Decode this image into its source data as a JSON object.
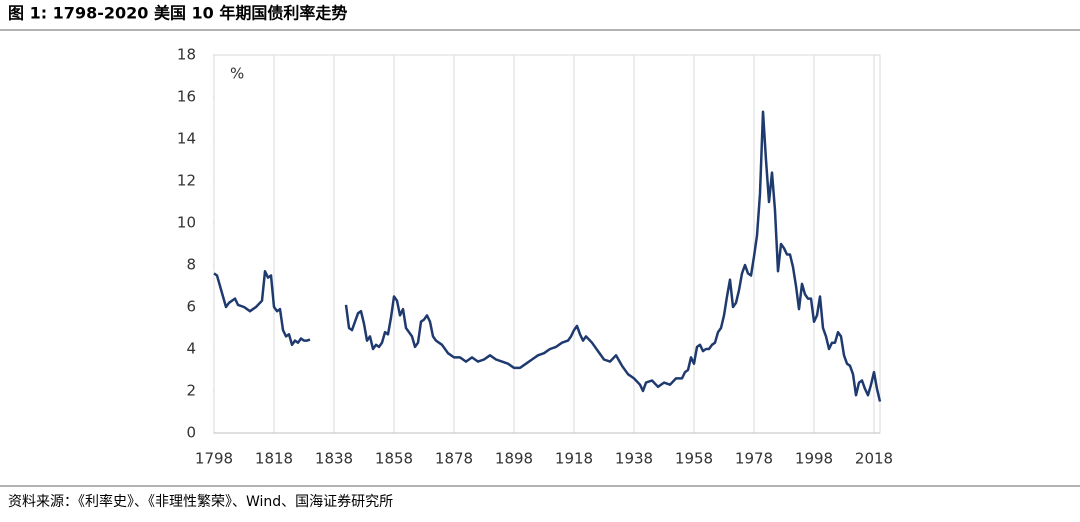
{
  "chart_data": {
    "type": "line",
    "title": "图 1:  1798-2020  美国 10 年期国债利率走势",
    "unit_label": "%",
    "source": "资料来源：《利率史》、《非理性繁荣》、Wind、国海证券研究所",
    "x": [
      1798,
      1799,
      1800,
      1801,
      1802,
      1803,
      1805,
      1806,
      1808,
      1810,
      1812,
      1814,
      1815,
      1816,
      1817,
      1818,
      1819,
      1820,
      1821,
      1822,
      1823,
      1824,
      1825,
      1826,
      1827,
      1828,
      1829,
      1830,
      1836,
      1842,
      1843,
      1844,
      1845,
      1846,
      1847,
      1848,
      1849,
      1850,
      1851,
      1852,
      1853,
      1854,
      1855,
      1856,
      1857,
      1858,
      1859,
      1860,
      1861,
      1862,
      1863,
      1864,
      1865,
      1866,
      1867,
      1868,
      1869,
      1870,
      1871,
      1872,
      1874,
      1876,
      1878,
      1880,
      1882,
      1884,
      1886,
      1888,
      1890,
      1892,
      1894,
      1896,
      1898,
      1900,
      1902,
      1904,
      1906,
      1908,
      1910,
      1912,
      1914,
      1916,
      1917,
      1918,
      1919,
      1920,
      1921,
      1922,
      1924,
      1926,
      1928,
      1930,
      1932,
      1934,
      1936,
      1938,
      1940,
      1941,
      1942,
      1944,
      1946,
      1948,
      1950,
      1952,
      1954,
      1955,
      1956,
      1957,
      1958,
      1959,
      1960,
      1961,
      1962,
      1963,
      1964,
      1965,
      1966,
      1967,
      1968,
      1969,
      1970,
      1971,
      1972,
      1973,
      1974,
      1975,
      1976,
      1977,
      1978,
      1979,
      1980,
      1981,
      1982,
      1983,
      1984,
      1985,
      1986,
      1987,
      1988,
      1989,
      1990,
      1991,
      1992,
      1993,
      1994,
      1995,
      1996,
      1997,
      1998,
      1999,
      2000,
      2001,
      2002,
      2003,
      2004,
      2005,
      2006,
      2007,
      2008,
      2009,
      2010,
      2011,
      2012,
      2013,
      2014,
      2015,
      2016,
      2017,
      2018,
      2019,
      2020
    ],
    "series": [
      {
        "name": "美国10年期国债利率",
        "color": "#1f3a6e",
        "values": [
          7.6,
          7.5,
          7.0,
          6.5,
          6.0,
          6.2,
          6.4,
          6.1,
          6.0,
          5.8,
          6.0,
          6.3,
          7.7,
          7.4,
          7.5,
          6.0,
          5.8,
          5.9,
          4.9,
          4.6,
          4.7,
          4.2,
          4.4,
          4.3,
          4.5,
          4.4,
          4.4,
          4.45,
          null,
          6.1,
          5.0,
          4.9,
          5.3,
          5.7,
          5.8,
          5.2,
          4.4,
          4.6,
          4.0,
          4.2,
          4.1,
          4.3,
          4.8,
          4.7,
          5.5,
          6.5,
          6.3,
          5.6,
          5.9,
          5.0,
          4.8,
          4.6,
          4.1,
          4.3,
          5.3,
          5.4,
          5.6,
          5.3,
          4.6,
          4.4,
          4.2,
          3.8,
          3.6,
          3.6,
          3.4,
          3.6,
          3.4,
          3.5,
          3.7,
          3.5,
          3.4,
          3.3,
          3.1,
          3.1,
          3.3,
          3.5,
          3.7,
          3.8,
          4.0,
          4.1,
          4.3,
          4.4,
          4.6,
          4.9,
          5.1,
          4.7,
          4.4,
          4.6,
          4.3,
          3.9,
          3.5,
          3.4,
          3.7,
          3.2,
          2.8,
          2.6,
          2.3,
          2.0,
          2.4,
          2.5,
          2.2,
          2.4,
          2.3,
          2.6,
          2.6,
          2.9,
          3.0,
          3.6,
          3.3,
          4.1,
          4.2,
          3.9,
          4.0,
          4.0,
          4.2,
          4.3,
          4.8,
          5.0,
          5.6,
          6.5,
          7.3,
          6.0,
          6.2,
          6.8,
          7.6,
          8.0,
          7.6,
          7.5,
          8.4,
          9.4,
          11.4,
          15.3,
          13.0,
          11.0,
          12.4,
          10.6,
          7.7,
          9.0,
          8.8,
          8.5,
          8.5,
          7.9,
          7.0,
          5.9,
          7.1,
          6.6,
          6.4,
          6.4,
          5.3,
          5.6,
          6.5,
          5.0,
          4.6,
          4.0,
          4.3,
          4.3,
          4.8,
          4.6,
          3.7,
          3.3,
          3.2,
          2.8,
          1.8,
          2.4,
          2.5,
          2.1,
          1.8,
          2.3,
          2.9,
          2.1,
          1.5
        ]
      }
    ],
    "xlim": [
      1798,
      2020
    ],
    "ylim": [
      0,
      18
    ],
    "xticks": [
      1798,
      1818,
      1838,
      1858,
      1878,
      1898,
      1918,
      1938,
      1958,
      1978,
      1998,
      2018
    ],
    "yticks": [
      0,
      2,
      4,
      6,
      8,
      10,
      12,
      14,
      16,
      18
    ],
    "grid": true
  }
}
